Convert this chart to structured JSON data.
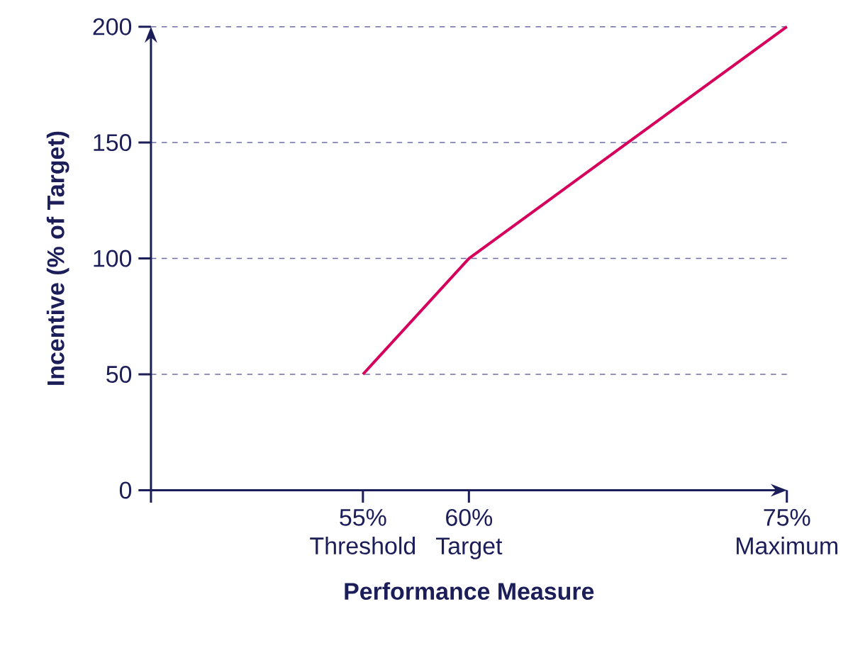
{
  "chart_data": {
    "type": "line",
    "xlabel": "Performance Measure",
    "ylabel": "Incentive (% of Target)",
    "x": [
      55,
      60,
      75
    ],
    "series": [
      {
        "color": "#d6005c",
        "values": [
          50,
          100,
          200
        ]
      }
    ],
    "xlim": [
      45,
      75
    ],
    "ylim": [
      0,
      200
    ],
    "xticks": [
      {
        "value": 45,
        "label": null
      },
      {
        "value": 55,
        "label": "55% Threshold"
      },
      {
        "value": 60,
        "label": "60% Target"
      },
      {
        "value": 75,
        "label": "75% Maximum"
      }
    ],
    "yticks": [
      0,
      50,
      100,
      150,
      200
    ],
    "grid": "y"
  }
}
